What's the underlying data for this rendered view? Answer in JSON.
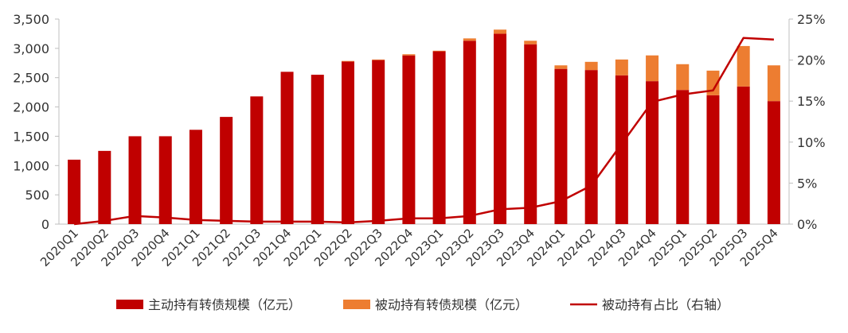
{
  "chart_data": {
    "type": "bar",
    "stacked": true,
    "categories": [
      "2020Q1",
      "2020Q2",
      "2020Q3",
      "2020Q4",
      "2021Q1",
      "2021Q2",
      "2021Q3",
      "2021Q4",
      "2022Q1",
      "2022Q2",
      "2022Q3",
      "2022Q4",
      "2023Q1",
      "2023Q2",
      "2023Q3",
      "2023Q4",
      "2024Q1",
      "2024Q2",
      "2024Q3",
      "2024Q4",
      "2025Q1",
      "2025Q2",
      "2025Q3",
      "2025Q4"
    ],
    "series": [
      {
        "name": "主动持有转债规模（亿元）",
        "kind": "bar",
        "axis": "left",
        "color": "#c00000",
        "values": [
          1100,
          1250,
          1500,
          1500,
          1610,
          1830,
          2180,
          2600,
          2550,
          2775,
          2800,
          2880,
          2950,
          3130,
          3250,
          3070,
          2650,
          2630,
          2540,
          2440,
          2290,
          2200,
          2350,
          2100
        ]
      },
      {
        "name": "被动持有转债规模（亿元）",
        "kind": "bar",
        "axis": "left",
        "color": "#ed7d31",
        "values": [
          0,
          0,
          0,
          0,
          0,
          0,
          0,
          0,
          0,
          10,
          10,
          20,
          10,
          40,
          70,
          60,
          60,
          140,
          270,
          440,
          440,
          420,
          690,
          610
        ]
      },
      {
        "name": "被动持有占比（右轴）",
        "kind": "line",
        "axis": "right",
        "color": "#c00000",
        "values": [
          0.0,
          0.4,
          1.0,
          0.8,
          0.5,
          0.4,
          0.3,
          0.3,
          0.3,
          0.2,
          0.4,
          0.7,
          0.7,
          1.0,
          1.8,
          2.0,
          2.8,
          4.7,
          9.8,
          14.9,
          15.8,
          16.3,
          22.7,
          22.5
        ]
      }
    ],
    "ylim": [
      0,
      3500
    ],
    "yticks": [
      "0",
      "500",
      "1,000",
      "1,500",
      "2,000",
      "2,500",
      "3,000",
      "3,500"
    ],
    "y2lim": [
      0,
      25
    ],
    "y2ticks": [
      "0%",
      "5%",
      "10%",
      "15%",
      "20%",
      "25%"
    ],
    "grid": false,
    "legend_position": "bottom"
  }
}
